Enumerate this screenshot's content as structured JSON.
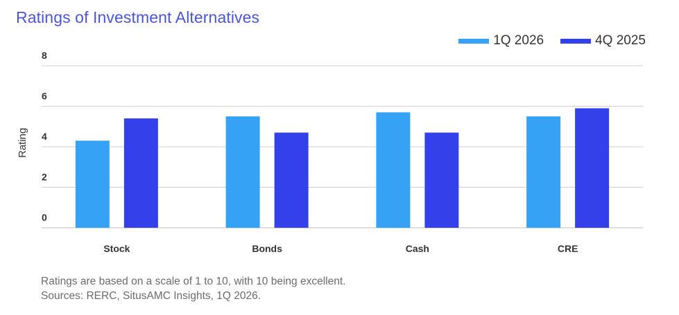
{
  "chart_data": {
    "type": "bar",
    "title": "Ratings of Investment Alternatives",
    "ylabel": "Rating",
    "categories": [
      "Stock",
      "Bonds",
      "Cash",
      "CRE"
    ],
    "series": [
      {
        "name": "1Q 2026",
        "color": "#36a2f5",
        "values": [
          4.3,
          5.5,
          5.7,
          5.5
        ]
      },
      {
        "name": "4Q 2025",
        "color": "#3440ea",
        "values": [
          5.4,
          4.7,
          4.7,
          5.9
        ]
      }
    ],
    "ylim": [
      0,
      8
    ],
    "yticks": [
      0,
      2,
      4,
      6,
      8
    ],
    "grid": true,
    "legend_position": "top-right"
  },
  "notes": [
    "Ratings are based on a scale of 1 to 10, with 10 being excellent.",
    "Sources: RERC, SitusAMC Insights, 1Q 2026."
  ]
}
